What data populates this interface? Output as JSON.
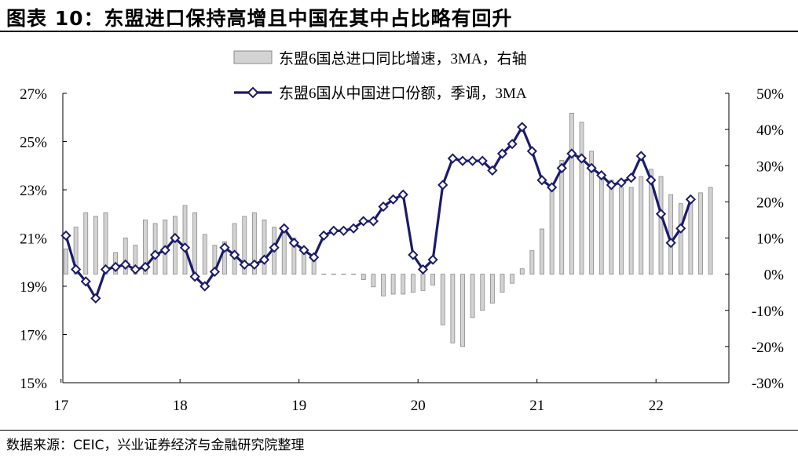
{
  "title": "图表 10：东盟进口保持高增且中国在其中占比略有回升",
  "source": "数据来源：CEIC，兴业证券经济与金融研究院整理",
  "chart_data": {
    "type": "bar+line",
    "left_axis": {
      "min": 15,
      "max": 27,
      "ticks": [
        15,
        17,
        19,
        21,
        23,
        25,
        27
      ],
      "suffix": "%"
    },
    "right_axis": {
      "min": -30,
      "max": 50,
      "ticks": [
        -30,
        -20,
        -10,
        0,
        10,
        20,
        30,
        40,
        50
      ],
      "suffix": "%"
    },
    "x_labels": [
      "17",
      "18",
      "19",
      "20",
      "21",
      "22"
    ],
    "legend_position": "top-center",
    "series": [
      {
        "name": "东盟6国总进口同比增速，3MA，右轴",
        "kind": "bar",
        "axis": "right",
        "color": "#d3d3d3",
        "values": [
          7,
          13,
          17,
          16,
          17,
          6,
          10,
          8,
          15,
          14,
          15,
          16,
          19,
          17,
          11,
          8,
          9,
          14,
          16,
          17,
          15,
          13,
          12,
          10,
          6,
          5,
          0.5,
          0.3,
          0.3,
          0.4,
          -1.5,
          -3.5,
          -6,
          -5.5,
          -5.5,
          -5,
          -4.5,
          -3,
          -14,
          -19,
          -20,
          -12,
          -10,
          -8,
          -5,
          -2.5,
          1.5,
          6.5,
          12.5,
          24,
          31.5,
          44.5,
          42,
          34,
          28,
          26,
          24,
          24,
          27,
          29,
          27,
          22,
          19.5,
          20.5,
          22.5,
          24
        ],
        "dashed_range": [
          26,
          29
        ]
      },
      {
        "name": "东盟6国从中国进口份额，季调，3MA",
        "kind": "line",
        "axis": "left",
        "color": "#1b1b6b",
        "values": [
          21.1,
          19.7,
          19.2,
          18.5,
          19.7,
          19.8,
          19.9,
          19.7,
          19.8,
          20.3,
          20.5,
          21.0,
          20.6,
          19.4,
          19.0,
          19.6,
          20.6,
          20.3,
          19.9,
          19.9,
          20.1,
          20.6,
          21.4,
          20.8,
          20.5,
          20.2,
          21.1,
          21.3,
          21.3,
          21.4,
          21.7,
          21.7,
          22.3,
          22.6,
          22.8,
          20.3,
          19.7,
          20.1,
          23.2,
          24.3,
          24.2,
          24.2,
          24.2,
          23.8,
          24.5,
          24.9,
          25.6,
          24.6,
          23.4,
          23.1,
          23.9,
          24.5,
          24.3,
          23.9,
          23.6,
          23.2,
          23.3,
          23.5,
          24.4,
          23.4,
          22.0,
          20.8,
          21.4,
          22.6
        ]
      }
    ]
  }
}
